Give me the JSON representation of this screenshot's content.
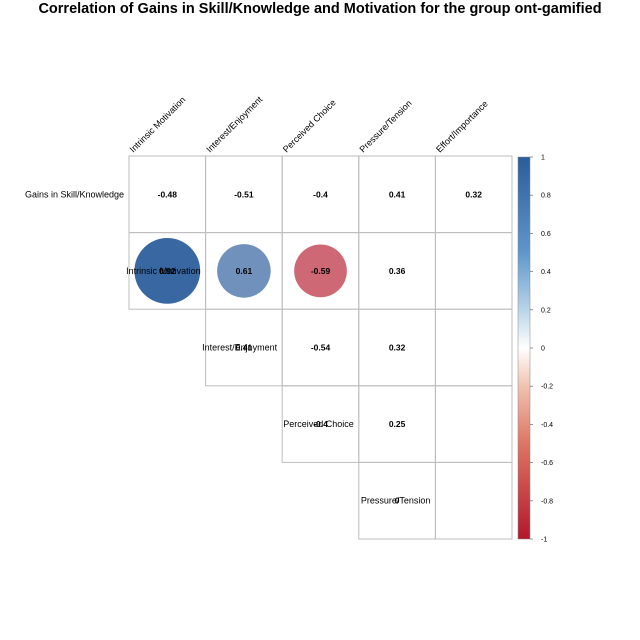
{
  "chart_data": {
    "type": "heatmap",
    "title": "Correlation of Gains in Skill/Knowledge and Motivation for the group ont-gamified",
    "column_labels": [
      "Intrinsic Motivation",
      "Interest/Enjoyment",
      "Perceived Choice",
      "Pressure/Tension",
      "Effort/Importance"
    ],
    "row_labels": [
      "Gains in Skill/Knowledge",
      "Intrinsic Motivation",
      "Interest/Enjoyment",
      "Perceived Choice",
      "Pressure/Tension"
    ],
    "cells": [
      {
        "row": 0,
        "col": 0,
        "value": -0.48,
        "label": "-0.48",
        "significant": false
      },
      {
        "row": 0,
        "col": 1,
        "value": -0.51,
        "label": "-0.51",
        "significant": false
      },
      {
        "row": 0,
        "col": 2,
        "value": -0.4,
        "label": "-0.4",
        "significant": false
      },
      {
        "row": 0,
        "col": 3,
        "value": 0.41,
        "label": "0.41",
        "significant": false
      },
      {
        "row": 0,
        "col": 4,
        "value": 0.32,
        "label": "0.32",
        "significant": false
      },
      {
        "row": 1,
        "col": 0,
        "value": 0.92,
        "label": "0.92",
        "significant": true
      },
      {
        "row": 1,
        "col": 1,
        "value": 0.61,
        "label": "0.61",
        "significant": true
      },
      {
        "row": 1,
        "col": 2,
        "value": -0.59,
        "label": "-0.59",
        "significant": true
      },
      {
        "row": 1,
        "col": 3,
        "value": 0.36,
        "label": "0.36",
        "significant": false
      },
      {
        "row": 2,
        "col": 1,
        "value": 0.41,
        "label": "0.41",
        "significant": false
      },
      {
        "row": 2,
        "col": 2,
        "value": -0.54,
        "label": "-0.54",
        "significant": false
      },
      {
        "row": 2,
        "col": 3,
        "value": 0.32,
        "label": "0.32",
        "significant": false
      },
      {
        "row": 3,
        "col": 2,
        "value": -0.4,
        "label": "-0.4",
        "significant": false
      },
      {
        "row": 3,
        "col": 3,
        "value": 0.25,
        "label": "0.25",
        "significant": false
      },
      {
        "row": 4,
        "col": 3,
        "value": 0,
        "label": "0",
        "significant": false
      }
    ],
    "row_label_column": [
      -1,
      0,
      1,
      2,
      3
    ],
    "row_start_column": [
      0,
      0,
      1,
      2,
      3
    ],
    "colorbar": {
      "range": [
        -1,
        1
      ],
      "ticks": [
        "1",
        "0.8",
        "0.6",
        "0.4",
        "0.2",
        "0",
        "-0.2",
        "-0.4",
        "-0.6",
        "-0.8",
        "-1"
      ],
      "colors": {
        "negative": "#b2182b",
        "neutral": "#ffffff",
        "positive": "#2166ac"
      }
    },
    "grid": true,
    "legend": "right"
  }
}
